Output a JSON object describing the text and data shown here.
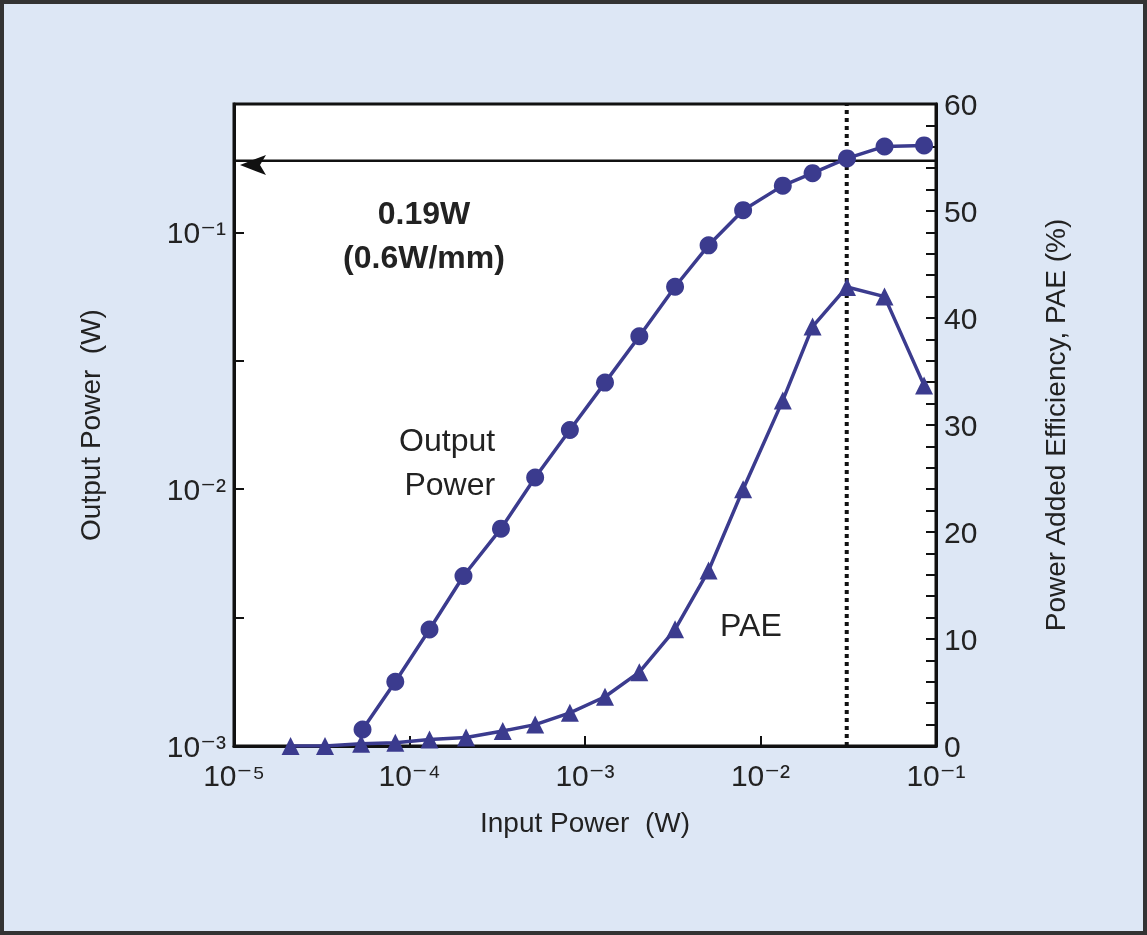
{
  "chart_data": {
    "type": "line",
    "xlabel": "Input Power  (W)",
    "ylabel": "Output Power  (W)",
    "y2label": "Power Added Efficiency, PAE (%)",
    "log": "xy",
    "xlim": [
      1e-05,
      0.1
    ],
    "ylim": [
      0.001,
      0.316
    ],
    "y2lim": [
      0,
      60
    ],
    "xticks": [
      {
        "value": 1e-05,
        "label": "10⁻⁵"
      },
      {
        "value": 0.0001,
        "label": "10⁻⁴"
      },
      {
        "value": 0.001,
        "label": "10⁻³"
      },
      {
        "value": 0.01,
        "label": "10⁻²"
      },
      {
        "value": 0.1,
        "label": "10⁻¹"
      }
    ],
    "yticks": [
      {
        "value": 0.001,
        "label": "10⁻³"
      },
      {
        "value": 0.00316,
        "label": null
      },
      {
        "value": 0.01,
        "label": "10⁻²"
      },
      {
        "value": 0.0316,
        "label": null
      },
      {
        "value": 0.1,
        "label": "10⁻¹"
      }
    ],
    "y2ticks": [
      0,
      {
        "value": 2,
        "label": null
      },
      {
        "value": 4,
        "label": null
      },
      {
        "value": 6,
        "label": null
      },
      {
        "value": 8,
        "label": null
      },
      10,
      {
        "value": 12,
        "label": null
      },
      {
        "value": 14,
        "label": null
      },
      {
        "value": 16,
        "label": null
      },
      {
        "value": 18,
        "label": null
      },
      20,
      {
        "value": 22,
        "label": null
      },
      {
        "value": 24,
        "label": null
      },
      {
        "value": 26,
        "label": null
      },
      {
        "value": 28,
        "label": null
      },
      30,
      {
        "value": 32,
        "label": null
      },
      {
        "value": 34,
        "label": null
      },
      {
        "value": 36,
        "label": null
      },
      {
        "value": 38,
        "label": null
      },
      40,
      {
        "value": 42,
        "label": null
      },
      {
        "value": 44,
        "label": null
      },
      {
        "value": 46,
        "label": null
      },
      {
        "value": 48,
        "label": null
      },
      50,
      {
        "value": 52,
        "label": null
      },
      {
        "value": 54,
        "label": null
      },
      {
        "value": 56,
        "label": null
      },
      {
        "value": 58,
        "label": null
      },
      60
    ],
    "grid": false,
    "legend": false,
    "line_style": "solid",
    "series": [
      {
        "name": "Output Power",
        "color": "#3b3b8e",
        "marker": "circle",
        "x": [
          5.4e-05,
          8.3e-05,
          0.00013,
          0.000203,
          0.000332,
          0.00052,
          0.00082,
          0.0013,
          0.00204,
          0.00326,
          0.00506,
          0.00796,
          0.0134,
          0.0198,
          0.0311,
          0.0509,
          0.0855
        ],
        "values": [
          0.00116,
          0.00178,
          0.00284,
          0.00459,
          0.00702,
          0.0111,
          0.017,
          0.026,
          0.0394,
          0.0614,
          0.089,
          0.122,
          0.152,
          0.17,
          0.194,
          0.216,
          0.218
        ]
      },
      {
        "name": "PAE",
        "color": "#3b3b8e",
        "marker": "triangle",
        "axis": "y2",
        "x": [
          2.1e-05,
          3.3e-05,
          5.3e-05,
          8.3e-05,
          0.00013,
          0.00021,
          0.00034,
          0.00052,
          0.00082,
          0.0013,
          0.00204,
          0.00326,
          0.00506,
          0.00796,
          0.0134,
          0.0198,
          0.0311,
          0.0509,
          0.0855
        ],
        "values": [
          0,
          0,
          0.2,
          0.3,
          0.6,
          0.8,
          1.4,
          2.0,
          3.1,
          4.6,
          6.9,
          10.9,
          16.4,
          24.0,
          32.3,
          39.2,
          42.9,
          42.0,
          33.7
        ]
      }
    ],
    "ref_lines": [
      {
        "axis": "x",
        "value": 0.031,
        "line_style": "dotted",
        "color": "#111111"
      },
      {
        "axis": "y",
        "value": 0.19,
        "line_style": "solid",
        "color": "#111111"
      }
    ],
    "annotations": [
      "0.19W\n(0.6W/mm)"
    ]
  }
}
